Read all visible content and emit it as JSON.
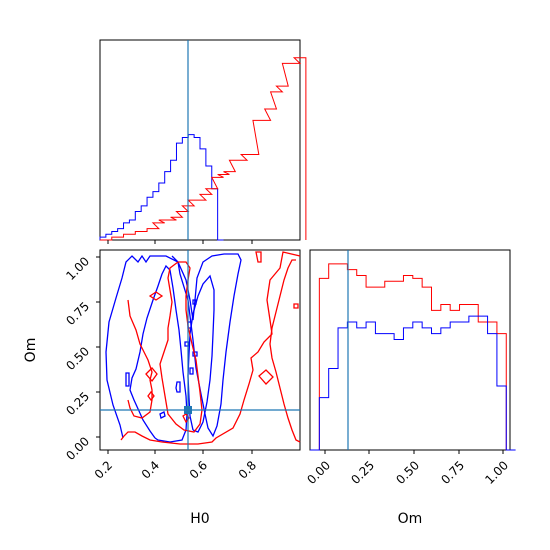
{
  "chart_data": [
    {
      "type": "histogram-step",
      "panel": "H0 marginal",
      "x_range": [
        0.15,
        1.0
      ],
      "truth": 0.53,
      "series": [
        {
          "color": "#0000ff",
          "x": [
            0.15,
            0.175,
            0.2,
            0.225,
            0.25,
            0.275,
            0.3,
            0.325,
            0.35,
            0.375,
            0.4,
            0.425,
            0.45,
            0.475,
            0.5,
            0.525,
            0.55,
            0.575,
            0.6,
            0.625,
            0.65
          ],
          "values": [
            0.5,
            1,
            1.5,
            2,
            3,
            3.5,
            5,
            6,
            7.5,
            8.5,
            10,
            12,
            14,
            17,
            18,
            18.5,
            18,
            16,
            13,
            9,
            0
          ]
        },
        {
          "color": "#ff0000",
          "x": [
            0.15,
            0.2,
            0.25,
            0.3,
            0.35,
            0.375,
            0.4,
            0.425,
            0.45,
            0.475,
            0.5,
            0.525,
            0.55,
            0.575,
            0.6,
            0.625,
            0.65,
            0.675,
            0.7,
            0.725,
            0.75,
            0.775,
            0.8,
            0.825,
            0.85,
            0.875,
            0.9,
            0.925,
            0.95,
            0.975
          ],
          "values": [
            0,
            0.5,
            1,
            1.5,
            2,
            3,
            3.5,
            3.5,
            4,
            5,
            6,
            7,
            7,
            8,
            9,
            11,
            11.5,
            12,
            14,
            14,
            15,
            15,
            21,
            21,
            23,
            26,
            27,
            31,
            31,
            32
          ]
        }
      ]
    },
    {
      "type": "contour",
      "panel": "H0 vs Om",
      "x_range": [
        0.15,
        1.0
      ],
      "y_range": [
        -0.05,
        1.05
      ],
      "xticks": [
        "0.2",
        "0.4",
        "0.6",
        "0.8"
      ],
      "yticks": [
        "0.00",
        "0.25",
        "0.50",
        "0.75",
        "1.00"
      ],
      "xlabel": "H0",
      "ylabel": "Om",
      "truth": {
        "H0": 0.53,
        "Om": 0.13
      }
    },
    {
      "type": "histogram-step",
      "panel": "Om marginal",
      "x_range": [
        -0.05,
        1.02
      ],
      "truth": 0.13,
      "xticks": [
        "0.00",
        "0.25",
        "0.50",
        "0.75",
        "1.00"
      ],
      "xlabel": "Om",
      "series": [
        {
          "color": "#ff0000",
          "x": [
            0,
            0.05,
            0.1,
            0.15,
            0.2,
            0.25,
            0.3,
            0.35,
            0.4,
            0.45,
            0.5,
            0.55,
            0.6,
            0.65,
            0.7,
            0.75,
            0.8,
            0.85,
            0.9,
            0.95
          ],
          "values": [
            29.5,
            32,
            32,
            31,
            30,
            28,
            28,
            29,
            29,
            30,
            29.5,
            28,
            24,
            25,
            24,
            25,
            25,
            22,
            22,
            20
          ]
        },
        {
          "color": "#0000ff",
          "x": [
            -0.05,
            0,
            0.05,
            0.1,
            0.15,
            0.2,
            0.25,
            0.3,
            0.35,
            0.4,
            0.45,
            0.5,
            0.55,
            0.6,
            0.65,
            0.7,
            0.75,
            0.8,
            0.85,
            0.9,
            0.95,
            1.0
          ],
          "values": [
            0,
            9,
            14,
            21,
            22,
            21,
            22,
            20,
            20,
            19,
            21,
            22,
            21,
            20,
            21,
            22,
            22,
            23,
            23,
            20,
            11,
            0
          ]
        }
      ]
    }
  ],
  "colors": {
    "blue": "#0000ff",
    "red": "#ff0000",
    "truth": "#1f77b4",
    "axis": "#000000"
  }
}
